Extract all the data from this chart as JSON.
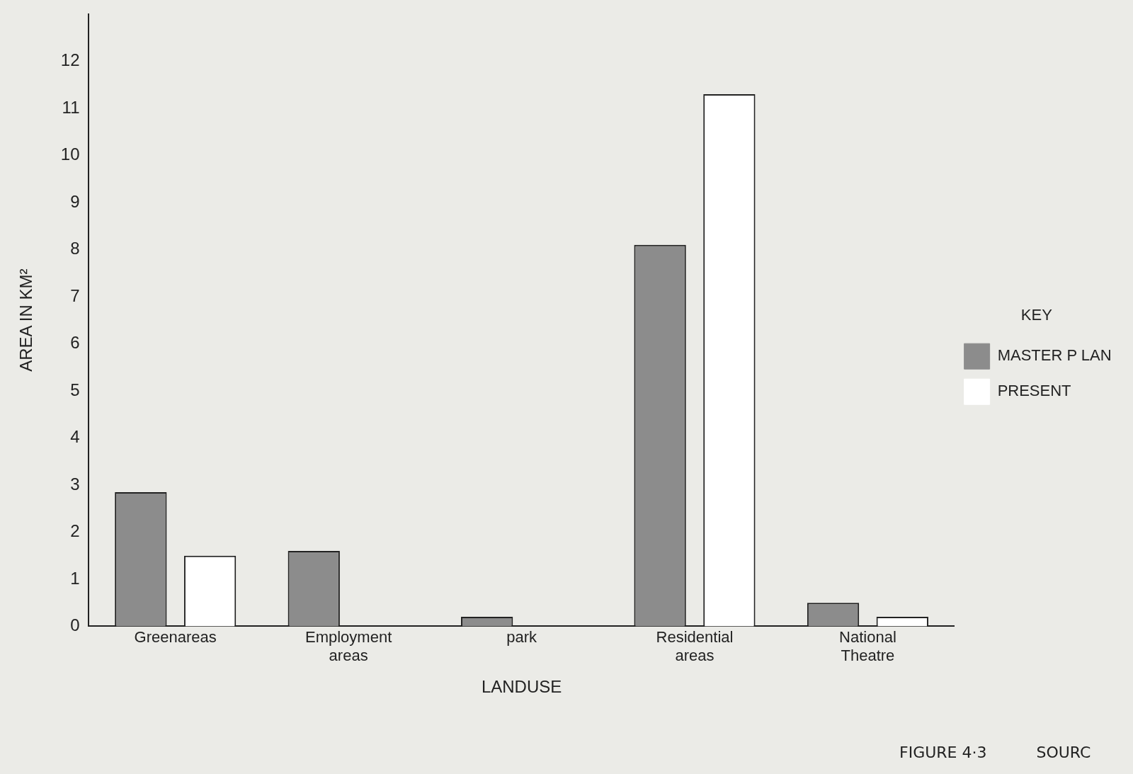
{
  "chart_data": {
    "type": "bar",
    "categories": [
      "Greenareas",
      "Employment areas",
      "park",
      "Residential areas",
      "National Theatre"
    ],
    "series": [
      {
        "name": "MASTER P LAN",
        "color": "#8c8c8c",
        "values": [
          2.85,
          1.6,
          0.2,
          8.1,
          0.5
        ]
      },
      {
        "name": "PRESENT",
        "color": "#ffffff",
        "values": [
          1.5,
          null,
          null,
          11.3,
          0.2
        ]
      }
    ],
    "xlabel": "LANDUSE",
    "ylabel": "AREA IN KM²",
    "legend_title": "KEY",
    "ylim": [
      0,
      13
    ],
    "yticks": [
      0,
      1,
      2,
      3,
      4,
      5,
      6,
      7,
      8,
      9,
      10,
      11,
      12
    ],
    "grid": false,
    "legend": "right",
    "annotations": [
      "FIGURE 4·3",
      "SOURC"
    ]
  }
}
